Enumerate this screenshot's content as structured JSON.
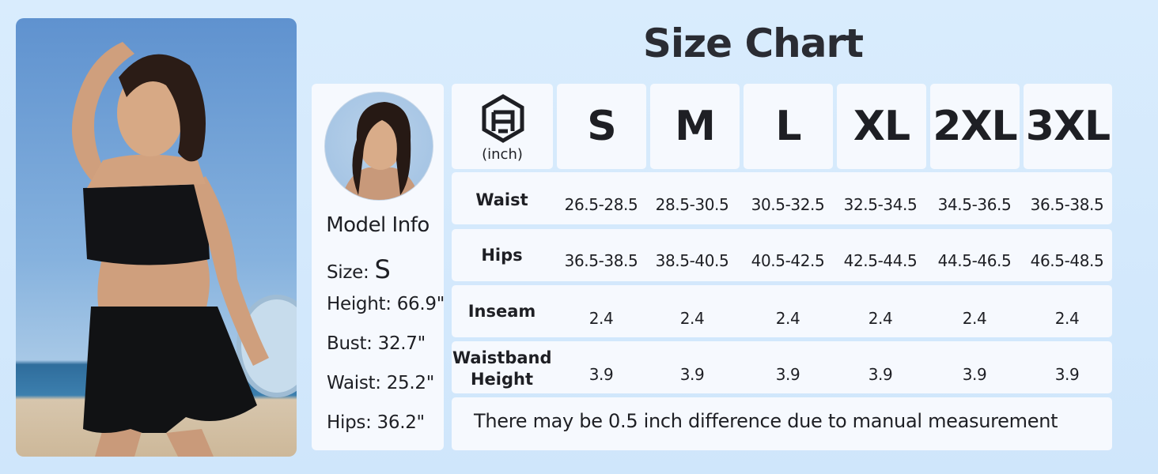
{
  "title": "Size Chart",
  "model": {
    "heading": "Model Info",
    "size_label": "Size: ",
    "size_value": "S",
    "height": "Height: 66.9\"",
    "bust": "Bust: 32.7\"",
    "waist": "Waist: 25.2\"",
    "hips": "Hips: 36.2\""
  },
  "table": {
    "unit": "(inch)",
    "sizes": [
      "S",
      "M",
      "L",
      "XL",
      "2XL",
      "3XL"
    ],
    "rows": [
      {
        "label": "Waist",
        "values": [
          "26.5-28.5",
          "28.5-30.5",
          "30.5-32.5",
          "32.5-34.5",
          "34.5-36.5",
          "36.5-38.5"
        ]
      },
      {
        "label": "Hips",
        "values": [
          "36.5-38.5",
          "38.5-40.5",
          "40.5-42.5",
          "42.5-44.5",
          "44.5-46.5",
          "46.5-48.5"
        ]
      },
      {
        "label": "Inseam",
        "values": [
          "2.4",
          "2.4",
          "2.4",
          "2.4",
          "2.4",
          "2.4"
        ]
      },
      {
        "label": "Waistband Height",
        "values": [
          "3.9",
          "3.9",
          "3.9",
          "3.9",
          "3.9",
          "3.9"
        ]
      }
    ],
    "note": "There may be 0.5 inch difference due to manual measurement"
  },
  "colors": {
    "background": "#d3e8fc",
    "card": "#f6f9fe",
    "text": "#1e1f24"
  }
}
